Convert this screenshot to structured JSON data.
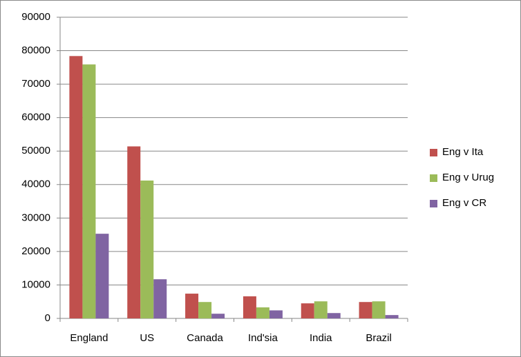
{
  "chart_data": {
    "type": "bar",
    "categories": [
      "England",
      "US",
      "Canada",
      "Ind'sia",
      "India",
      "Brazil"
    ],
    "series": [
      {
        "name": "Eng v Ita",
        "color": "#c0504d",
        "values": [
          78400,
          51400,
          7400,
          6600,
          4500,
          4900
        ]
      },
      {
        "name": "Eng v Urug",
        "color": "#9bbb59",
        "values": [
          75900,
          41200,
          4900,
          3300,
          5100,
          5100
        ]
      },
      {
        "name": "Eng v CR",
        "color": "#8064a2",
        "values": [
          25300,
          11700,
          1400,
          2400,
          1600,
          1000
        ]
      }
    ],
    "ylim": [
      0,
      90000
    ],
    "yticks": [
      0,
      10000,
      20000,
      30000,
      40000,
      50000,
      60000,
      70000,
      80000,
      90000
    ],
    "grid": true,
    "legend": "right"
  }
}
